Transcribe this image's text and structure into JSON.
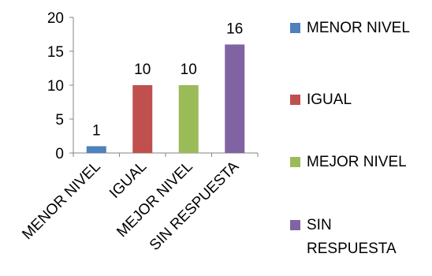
{
  "chart_data": {
    "type": "bar",
    "categories": [
      "MENOR NIVEL",
      "IGUAL",
      "MEJOR NIVEL",
      "SIN RESPUESTA"
    ],
    "values": [
      1,
      10,
      10,
      16
    ],
    "colors": [
      "#4f81bd",
      "#c0504d",
      "#9bbb59",
      "#8064a2"
    ],
    "ylim": [
      0,
      20
    ],
    "yticks": [
      0,
      5,
      10,
      15,
      20
    ],
    "legend_position": "right",
    "grid": false
  },
  "legend": [
    {
      "label": "MENOR NIVEL",
      "color": "#4f81bd"
    },
    {
      "label": "IGUAL",
      "color": "#c0504d"
    },
    {
      "label": "MEJOR NIVEL",
      "color": "#9bbb59"
    },
    {
      "label": "SIN RESPUESTA",
      "color": "#8064a2"
    }
  ]
}
